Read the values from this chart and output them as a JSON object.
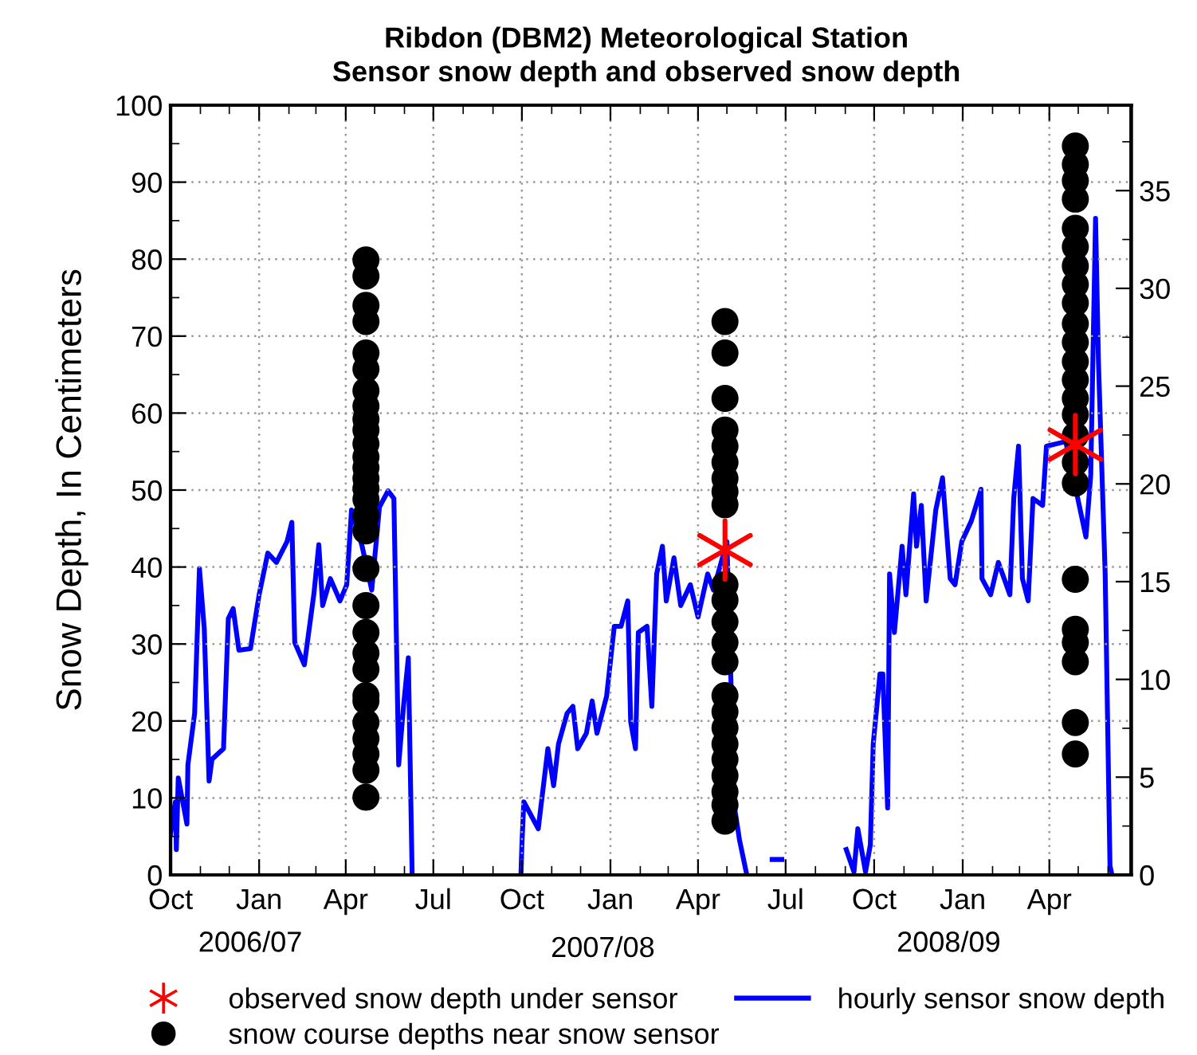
{
  "chart_data": {
    "type": "line",
    "title": "Ribdon (DBM2) Meteorological Station",
    "subtitle": "Sensor snow depth and observed snow depth",
    "ylabel": "Snow Depth, In Centimeters",
    "annotations": [
      "2006/07",
      "2007/08",
      "2008/09"
    ],
    "xlim": [
      "2006-10-01",
      "2009-06-25"
    ],
    "xticks": [
      {
        "value": "2006-10-01",
        "label": "Oct"
      },
      {
        "value": "2006-11-01",
        "label": null
      },
      {
        "value": "2006-12-01",
        "label": null
      },
      {
        "value": "2007-01-01",
        "label": "Jan"
      },
      {
        "value": "2007-02-01",
        "label": null
      },
      {
        "value": "2007-03-01",
        "label": null
      },
      {
        "value": "2007-04-01",
        "label": "Apr"
      },
      {
        "value": "2007-05-01",
        "label": null
      },
      {
        "value": "2007-06-01",
        "label": null
      },
      {
        "value": "2007-07-01",
        "label": "Jul"
      },
      {
        "value": "2007-08-01",
        "label": null
      },
      {
        "value": "2007-09-01",
        "label": null
      },
      {
        "value": "2007-10-01",
        "label": "Oct"
      },
      {
        "value": "2007-11-01",
        "label": null
      },
      {
        "value": "2007-12-01",
        "label": null
      },
      {
        "value": "2008-01-01",
        "label": "Jan"
      },
      {
        "value": "2008-02-01",
        "label": null
      },
      {
        "value": "2008-03-01",
        "label": null
      },
      {
        "value": "2008-04-01",
        "label": "Apr"
      },
      {
        "value": "2008-05-01",
        "label": null
      },
      {
        "value": "2008-06-01",
        "label": null
      },
      {
        "value": "2008-07-01",
        "label": "Jul"
      },
      {
        "value": "2008-08-01",
        "label": null
      },
      {
        "value": "2008-09-01",
        "label": null
      },
      {
        "value": "2008-10-01",
        "label": "Oct"
      },
      {
        "value": "2008-11-01",
        "label": null
      },
      {
        "value": "2008-12-01",
        "label": null
      },
      {
        "value": "2009-01-01",
        "label": "Jan"
      },
      {
        "value": "2009-02-01",
        "label": null
      },
      {
        "value": "2009-03-01",
        "label": null
      },
      {
        "value": "2009-04-01",
        "label": "Apr"
      },
      {
        "value": "2009-05-01",
        "label": null
      },
      {
        "value": "2009-06-01",
        "label": null
      }
    ],
    "ylim": [
      0,
      100
    ],
    "yticks": [
      0,
      {
        "value": 5,
        "label": null
      },
      10,
      {
        "value": 15,
        "label": null
      },
      20,
      {
        "value": 25,
        "label": null
      },
      30,
      {
        "value": 35,
        "label": null
      },
      40,
      {
        "value": 45,
        "label": null
      },
      50,
      {
        "value": 55,
        "label": null
      },
      60,
      {
        "value": 65,
        "label": null
      },
      70,
      {
        "value": 75,
        "label": null
      },
      80,
      {
        "value": 85,
        "label": null
      },
      90,
      {
        "value": 95,
        "label": null
      },
      100
    ],
    "y2lim": [
      0,
      39.37
    ],
    "y2ticks": [
      0,
      {
        "value": 2.5,
        "label": null
      },
      5,
      {
        "value": 7.5,
        "label": null
      },
      10,
      {
        "value": 12.5,
        "label": null
      },
      15,
      {
        "value": 17.5,
        "label": null
      },
      20,
      {
        "value": 22.5,
        "label": null
      },
      25,
      {
        "value": 27.5,
        "label": null
      },
      30,
      {
        "value": 32.5,
        "label": null
      },
      35,
      {
        "value": 37.5,
        "label": null
      }
    ],
    "grid": true,
    "legend": "bottom",
    "series": [
      {
        "name": "observed snow depth under sensor",
        "type": "scatter",
        "marker": "cross",
        "color": "#ff0000",
        "x": [
          "2008-04-29",
          "2009-04-28"
        ],
        "values": [
          42.2,
          55.9
        ]
      },
      {
        "name": "snow course depths near snow sensor",
        "type": "scatter",
        "marker": "circle",
        "color": "#000000",
        "x": [
          "2007-04-22",
          "2007-04-22",
          "2007-04-22",
          "2007-04-22",
          "2007-04-22",
          "2007-04-22",
          "2007-04-22",
          "2007-04-22",
          "2007-04-22",
          "2007-04-22",
          "2007-04-22",
          "2007-04-22",
          "2007-04-22",
          "2007-04-22",
          "2007-04-22",
          "2007-04-22",
          "2007-04-22",
          "2007-04-22",
          "2007-04-22",
          "2007-04-22",
          "2007-04-22",
          "2007-04-22",
          "2007-04-22",
          "2007-04-22",
          "2007-04-22",
          "2007-04-22",
          "2007-04-22",
          "2007-04-22",
          "2007-04-22",
          "2007-04-22",
          "2008-04-29",
          "2008-04-29",
          "2008-04-29",
          "2008-04-29",
          "2008-04-29",
          "2008-04-29",
          "2008-04-29",
          "2008-04-29",
          "2008-04-29",
          "2008-04-29",
          "2008-04-29",
          "2008-04-29",
          "2008-04-29",
          "2008-04-29",
          "2008-04-29",
          "2008-04-29",
          "2008-04-29",
          "2008-04-29",
          "2008-04-29",
          "2008-04-29",
          "2008-04-29",
          "2008-04-29",
          "2008-04-29",
          "2009-04-28",
          "2009-04-28",
          "2009-04-28",
          "2009-04-28",
          "2009-04-28",
          "2009-04-28",
          "2009-04-28",
          "2009-04-28",
          "2009-04-28",
          "2009-04-28",
          "2009-04-28",
          "2009-04-28",
          "2009-04-28",
          "2009-04-28",
          "2009-04-28",
          "2009-04-28",
          "2009-04-28",
          "2009-04-28",
          "2009-04-28",
          "2009-04-28",
          "2009-04-28",
          "2009-04-28",
          "2009-04-28",
          "2009-04-28"
        ],
        "values": [
          79.9,
          77.8,
          74,
          71.9,
          67.8,
          65.7,
          62.9,
          60.9,
          59.2,
          57.8,
          56,
          54.3,
          52.9,
          51.5,
          50.2,
          48.8,
          46.7,
          44.7,
          39.8,
          35,
          31.5,
          28.8,
          26.7,
          23.3,
          22.6,
          19.8,
          17.7,
          15.7,
          13.6,
          10.1,
          71.9,
          67.8,
          61.9,
          57.8,
          55.7,
          53.6,
          51.5,
          49.8,
          48.1,
          37.7,
          35.7,
          32.9,
          30.2,
          27.7,
          23.3,
          21.2,
          19.1,
          17,
          15,
          12.9,
          10.8,
          9.1,
          7,
          94.7,
          92.3,
          90.2,
          87.8,
          84,
          81.6,
          79.1,
          76.7,
          74.3,
          71.6,
          69.2,
          66.7,
          64.3,
          61.9,
          59.8,
          57.1,
          53.6,
          50.9,
          38.4,
          31.9,
          30.2,
          27.7,
          19.8,
          15.7
        ]
      },
      {
        "name": "hourly sensor snow depth",
        "color": "#0000ff",
        "line_style": "solid",
        "marker": "none",
        "x": [
          "2006-10-01",
          "2006-10-06",
          "2006-10-07",
          "2006-10-09",
          "2006-10-18",
          "2006-10-19",
          "2006-10-26",
          "2006-10-31",
          "2006-11-05",
          "2006-11-10",
          "2006-11-13",
          "2006-11-25",
          "2006-11-30",
          "2006-12-05",
          "2006-12-11",
          "2006-12-23",
          "2007-01-01",
          "2007-01-10",
          "2007-01-19",
          "2007-01-30",
          "2007-02-04",
          "2007-02-07",
          "2007-02-17",
          "2007-02-27",
          "2007-03-04",
          "2007-03-08",
          "2007-03-16",
          "2007-03-26",
          "2007-04-02",
          "2007-04-07",
          "2007-04-18",
          "2007-04-28",
          "2007-05-06",
          "2007-05-15",
          "2007-05-21",
          "2007-05-26",
          "2007-05-31",
          "2007-06-05",
          "2007-06-09",
          "2007-07-01",
          "2007-09-30",
          "2007-10-01",
          "2007-10-03",
          "2007-10-18",
          "2007-10-28",
          "2007-11-03",
          "2007-11-08",
          "2007-11-17",
          "2007-11-23",
          "2007-11-28",
          "2007-12-07",
          "2007-12-13",
          "2007-12-18",
          "2007-12-28",
          "2008-01-05",
          "2008-01-12",
          "2008-01-19",
          "2008-01-22",
          "2008-01-27",
          "2008-01-30",
          "2008-02-08",
          "2008-02-13",
          "2008-02-18",
          "2008-02-24",
          "2008-02-28",
          "2008-03-07",
          "2008-03-14",
          "2008-03-24",
          "2008-04-01",
          "2008-04-11",
          "2008-04-17",
          "2008-05-01",
          "2008-05-09",
          "2008-05-14",
          "2008-05-21",
          "2008-06-10",
          "2008-06-17",
          "2008-06-27",
          "2008-07-10",
          "2008-09-02",
          "2008-09-10",
          "2008-09-14",
          "2008-09-22",
          "2008-09-27",
          "2008-09-30",
          "2008-10-07",
          "2008-10-10",
          "2008-10-15",
          "2008-10-17",
          "2008-10-22",
          "2008-10-30",
          "2008-11-03",
          "2008-11-11",
          "2008-11-14",
          "2008-11-19",
          "2008-11-24",
          "2008-12-04",
          "2008-12-11",
          "2008-12-19",
          "2008-12-24",
          "2008-12-31",
          "2009-01-10",
          "2009-01-20",
          "2009-01-21",
          "2009-01-30",
          "2009-02-07",
          "2009-02-19",
          "2009-02-23",
          "2009-02-28",
          "2009-03-04",
          "2009-03-10",
          "2009-03-15",
          "2009-03-25",
          "2009-03-29",
          "2009-04-18",
          "2009-05-09",
          "2009-05-14",
          "2009-05-19",
          "2009-05-22",
          "2009-05-29",
          "2009-06-03",
          "2009-06-05"
        ],
        "values": [
          5.4,
          9.5,
          3.3,
          12.6,
          6.6,
          14.3,
          21,
          39.8,
          32,
          12.2,
          15,
          16.4,
          33.3,
          34.6,
          29.2,
          29.4,
          36.4,
          41.8,
          40.6,
          43.3,
          45.8,
          30.2,
          27.3,
          36.6,
          42.9,
          35,
          38.5,
          35.6,
          37.7,
          47.4,
          42.7,
          37,
          47.8,
          49.9,
          48.9,
          14.3,
          21.9,
          28.2,
          0,
          null,
          0,
          3.9,
          9.5,
          6,
          16.4,
          11.6,
          17,
          21,
          21.9,
          16.4,
          18.4,
          22.6,
          18.4,
          23.2,
          32.3,
          32.3,
          35.6,
          19.9,
          16.4,
          31.5,
          32.3,
          21.9,
          39.1,
          42.7,
          35.6,
          41.2,
          35,
          37.7,
          33.5,
          39.1,
          37,
          43.3,
          8.7,
          4.6,
          0.4,
          null,
          2,
          2,
          null,
          3.3,
          0.4,
          6,
          0.4,
          3.9,
          17,
          26.1,
          26.1,
          8.7,
          39.1,
          31.5,
          42.7,
          36.4,
          49.5,
          42.7,
          48,
          35.6,
          47.4,
          51.6,
          38.5,
          37.7,
          43.3,
          46,
          50.1,
          38.5,
          36.4,
          40.6,
          36.4,
          48.9,
          55.7,
          38.5,
          35.6,
          48.9,
          48,
          55.7,
          56.3,
          43.9,
          52,
          85.3,
          66.7,
          39.1,
          1.2,
          0
        ]
      }
    ]
  }
}
